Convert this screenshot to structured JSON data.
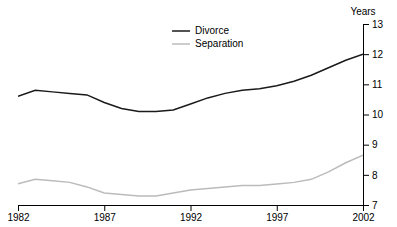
{
  "chart_data": {
    "type": "line",
    "y_label": "Years",
    "x": [
      1982,
      1983,
      1984,
      1985,
      1986,
      1987,
      1988,
      1989,
      1990,
      1991,
      1992,
      1993,
      1994,
      1995,
      1996,
      1997,
      1998,
      1999,
      2000,
      2001,
      2002
    ],
    "series": [
      {
        "name": "Divorce",
        "color": "#1a1a1a",
        "values": [
          10.6,
          10.8,
          10.75,
          10.7,
          10.65,
          10.4,
          10.2,
          10.1,
          10.1,
          10.15,
          10.35,
          10.55,
          10.7,
          10.8,
          10.85,
          10.95,
          11.1,
          11.3,
          11.55,
          11.8,
          12.0
        ]
      },
      {
        "name": "Separation",
        "color": "#bbbbbb",
        "values": [
          7.7,
          7.85,
          7.8,
          7.75,
          7.6,
          7.4,
          7.35,
          7.3,
          7.3,
          7.4,
          7.5,
          7.55,
          7.6,
          7.65,
          7.65,
          7.7,
          7.75,
          7.85,
          8.1,
          8.4,
          8.65
        ]
      }
    ],
    "xlim": [
      1982,
      2002
    ],
    "ylim": [
      7,
      13
    ],
    "xticks": [
      1982,
      1987,
      1992,
      1997,
      2002
    ],
    "yticks": [
      7,
      8,
      9,
      10,
      11,
      12,
      13
    ],
    "grid": false,
    "legend": "top"
  }
}
